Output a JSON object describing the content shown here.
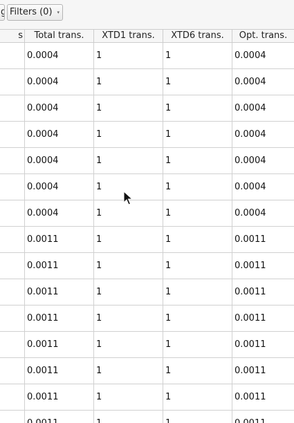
{
  "toolbar": {
    "prev_button_label": "g",
    "filters_label": "Filters (0)",
    "filters_arrow": "▾"
  },
  "table": {
    "columns": [
      "s",
      "Total trans.",
      "XTD1 trans.",
      "XTD6 trans.",
      "Opt. trans."
    ],
    "rows": [
      {
        "total": "0.0004",
        "xtd1": "1",
        "xtd6": "1",
        "opt": "0.0004"
      },
      {
        "total": "0.0004",
        "xtd1": "1",
        "xtd6": "1",
        "opt": "0.0004"
      },
      {
        "total": "0.0004",
        "xtd1": "1",
        "xtd6": "1",
        "opt": "0.0004"
      },
      {
        "total": "0.0004",
        "xtd1": "1",
        "xtd6": "1",
        "opt": "0.0004"
      },
      {
        "total": "0.0004",
        "xtd1": "1",
        "xtd6": "1",
        "opt": "0.0004"
      },
      {
        "total": "0.0004",
        "xtd1": "1",
        "xtd6": "1",
        "opt": "0.0004"
      },
      {
        "total": "0.0004",
        "xtd1": "1",
        "xtd6": "1",
        "opt": "0.0004"
      },
      {
        "total": "0.0011",
        "xtd1": "1",
        "xtd6": "1",
        "opt": "0.0011"
      },
      {
        "total": "0.0011",
        "xtd1": "1",
        "xtd6": "1",
        "opt": "0.0011"
      },
      {
        "total": "0.0011",
        "xtd1": "1",
        "xtd6": "1",
        "opt": "0.0011"
      },
      {
        "total": "0.0011",
        "xtd1": "1",
        "xtd6": "1",
        "opt": "0.0011"
      },
      {
        "total": "0.0011",
        "xtd1": "1",
        "xtd6": "1",
        "opt": "0.0011"
      },
      {
        "total": "0.0011",
        "xtd1": "1",
        "xtd6": "1",
        "opt": "0.0011"
      },
      {
        "total": "0.0011",
        "xtd1": "1",
        "xtd6": "1",
        "opt": "0.0011"
      },
      {
        "total": "0.0011",
        "xtd1": "1",
        "xtd6": "1",
        "opt": "0.0011"
      }
    ]
  },
  "icons": {
    "cursor": "mouse-pointer-icon"
  }
}
